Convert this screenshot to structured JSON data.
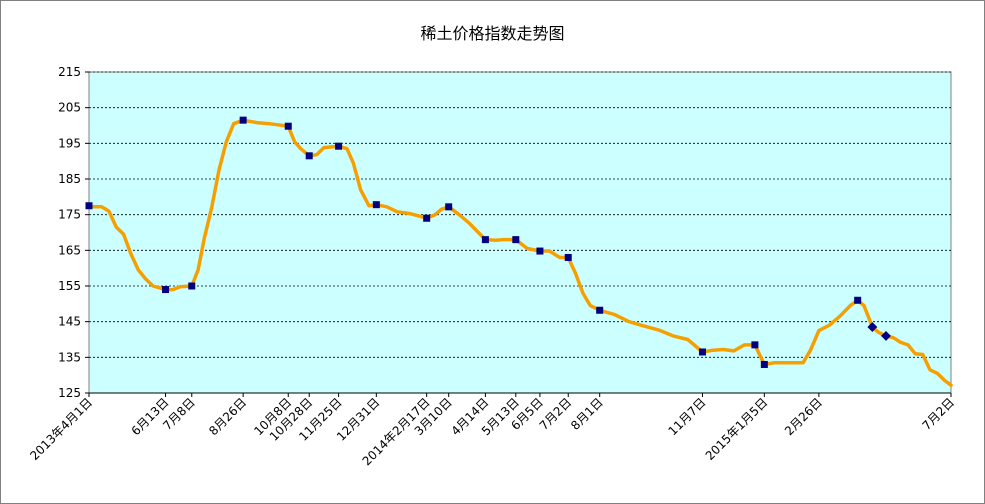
{
  "chart_data": {
    "type": "line",
    "title": "稀土价格指数走势图",
    "xlabel": "",
    "ylabel": "",
    "ylim": [
      125,
      215
    ],
    "yticks": [
      125,
      135,
      145,
      155,
      165,
      175,
      185,
      195,
      205,
      215
    ],
    "xlim": [
      "2013-04-01",
      "2015-07-02"
    ],
    "grid": true,
    "plot_background": "#ccffff",
    "line_color": "#f5a000",
    "marker_color": "#000080",
    "xtick_labels": [
      {
        "label": "2013年4月1日",
        "date": "2013-04-01"
      },
      {
        "label": "6月13日",
        "date": "2013-06-13"
      },
      {
        "label": "7月8日",
        "date": "2013-07-08"
      },
      {
        "label": "8月26日",
        "date": "2013-08-26"
      },
      {
        "label": "10月8日",
        "date": "2013-10-08"
      },
      {
        "label": "10月28日",
        "date": "2013-10-28"
      },
      {
        "label": "11月25日",
        "date": "2013-11-25"
      },
      {
        "label": "12月31日",
        "date": "2013-12-31"
      },
      {
        "label": "2014年2月17日",
        "date": "2014-02-17"
      },
      {
        "label": "3月10日",
        "date": "2014-03-10"
      },
      {
        "label": "4月14日",
        "date": "2014-04-14"
      },
      {
        "label": "5月13日",
        "date": "2014-05-13"
      },
      {
        "label": "6月5日",
        "date": "2014-06-05"
      },
      {
        "label": "7月2日",
        "date": "2014-07-02"
      },
      {
        "label": "8月1日",
        "date": "2014-08-01"
      },
      {
        "label": "11月7日",
        "date": "2014-11-07"
      },
      {
        "label": "2015年1月5日",
        "date": "2015-01-05"
      },
      {
        "label": "2月26日",
        "date": "2015-02-26"
      },
      {
        "label": "7月2日",
        "date": "2015-07-02"
      }
    ],
    "series": [
      {
        "line": [
          [
            "2013-04-01",
            177.5
          ],
          [
            "2013-04-06",
            177.2
          ],
          [
            "2013-04-13",
            177.2
          ],
          [
            "2013-04-20",
            176.0
          ],
          [
            "2013-04-27",
            171.5
          ],
          [
            "2013-05-04",
            169.5
          ],
          [
            "2013-05-11",
            164.0
          ],
          [
            "2013-05-18",
            159.5
          ],
          [
            "2013-05-25",
            157.0
          ],
          [
            "2013-06-01",
            155.0
          ],
          [
            "2013-06-13",
            154.0
          ],
          [
            "2013-06-20",
            154.0
          ],
          [
            "2013-06-27",
            154.8
          ],
          [
            "2013-07-08",
            155.0
          ],
          [
            "2013-07-14",
            159.5
          ],
          [
            "2013-07-20",
            168.5
          ],
          [
            "2013-07-27",
            177.0
          ],
          [
            "2013-08-03",
            187.5
          ],
          [
            "2013-08-10",
            195.5
          ],
          [
            "2013-08-17",
            200.5
          ],
          [
            "2013-08-26",
            201.5
          ],
          [
            "2013-09-08",
            200.8
          ],
          [
            "2013-09-20",
            200.5
          ],
          [
            "2013-10-08",
            199.8
          ],
          [
            "2013-10-14",
            195.5
          ],
          [
            "2013-10-20",
            193.5
          ],
          [
            "2013-10-28",
            191.5
          ],
          [
            "2013-11-04",
            191.8
          ],
          [
            "2013-11-11",
            193.8
          ],
          [
            "2013-11-25",
            194.2
          ],
          [
            "2013-12-03",
            193.5
          ],
          [
            "2013-12-09",
            189.5
          ],
          [
            "2013-12-16",
            182.0
          ],
          [
            "2013-12-24",
            177.5
          ],
          [
            "2013-12-31",
            177.8
          ],
          [
            "2014-01-10",
            177.2
          ],
          [
            "2014-01-20",
            175.8
          ],
          [
            "2014-02-01",
            175.3
          ],
          [
            "2014-02-17",
            174.0
          ],
          [
            "2014-02-25",
            175.0
          ],
          [
            "2014-03-03",
            176.5
          ],
          [
            "2014-03-10",
            177.2
          ],
          [
            "2014-03-20",
            175.0
          ],
          [
            "2014-03-30",
            172.5
          ],
          [
            "2014-04-14",
            168.0
          ],
          [
            "2014-04-24",
            167.8
          ],
          [
            "2014-05-01",
            168.0
          ],
          [
            "2014-05-13",
            168.0
          ],
          [
            "2014-05-24",
            165.5
          ],
          [
            "2014-06-05",
            164.8
          ],
          [
            "2014-06-14",
            164.8
          ],
          [
            "2014-06-24",
            163.0
          ],
          [
            "2014-07-02",
            163.0
          ],
          [
            "2014-07-09",
            158.5
          ],
          [
            "2014-07-16",
            153.0
          ],
          [
            "2014-07-23",
            149.5
          ],
          [
            "2014-08-01",
            148.2
          ],
          [
            "2014-08-15",
            147.0
          ],
          [
            "2014-08-29",
            145.0
          ],
          [
            "2014-09-12",
            143.8
          ],
          [
            "2014-09-26",
            142.7
          ],
          [
            "2014-10-10",
            141.0
          ],
          [
            "2014-10-24",
            140.0
          ],
          [
            "2014-11-07",
            136.5
          ],
          [
            "2014-11-17",
            137.0
          ],
          [
            "2014-11-27",
            137.2
          ],
          [
            "2014-12-07",
            136.8
          ],
          [
            "2014-12-17",
            138.5
          ],
          [
            "2014-12-27",
            138.5
          ],
          [
            "2015-01-05",
            133.0
          ],
          [
            "2015-01-15",
            133.5
          ],
          [
            "2015-01-25",
            133.5
          ],
          [
            "2015-02-05",
            133.5
          ],
          [
            "2015-02-11",
            133.5
          ],
          [
            "2015-02-18",
            137.0
          ],
          [
            "2015-02-26",
            142.5
          ],
          [
            "2015-03-08",
            144.0
          ],
          [
            "2015-03-18",
            146.5
          ],
          [
            "2015-03-28",
            149.5
          ],
          [
            "2015-04-04",
            151.0
          ],
          [
            "2015-04-10",
            149.5
          ],
          [
            "2015-04-18",
            143.5
          ],
          [
            "2015-04-24",
            142.0
          ],
          [
            "2015-05-01",
            141.0
          ],
          [
            "2015-05-08",
            140.5
          ],
          [
            "2015-05-15",
            139.2
          ],
          [
            "2015-05-22",
            138.5
          ],
          [
            "2015-05-29",
            136.0
          ],
          [
            "2015-06-05",
            135.8
          ],
          [
            "2015-06-12",
            131.5
          ],
          [
            "2015-06-19",
            130.5
          ],
          [
            "2015-06-26",
            128.5
          ],
          [
            "2015-07-02",
            127.2
          ]
        ],
        "markers": [
          [
            "2013-04-01",
            177.5
          ],
          [
            "2013-06-13",
            154.0
          ],
          [
            "2013-07-08",
            155.0
          ],
          [
            "2013-08-26",
            201.5
          ],
          [
            "2013-10-08",
            199.8
          ],
          [
            "2013-10-28",
            191.5
          ],
          [
            "2013-11-25",
            194.2
          ],
          [
            "2013-12-31",
            177.8
          ],
          [
            "2014-02-17",
            174.0
          ],
          [
            "2014-03-10",
            177.2
          ],
          [
            "2014-04-14",
            168.0
          ],
          [
            "2014-05-13",
            168.0
          ],
          [
            "2014-06-05",
            164.8
          ],
          [
            "2014-07-02",
            163.0
          ],
          [
            "2014-08-01",
            148.2
          ],
          [
            "2014-11-07",
            136.5
          ],
          [
            "2014-12-27",
            138.5
          ],
          [
            "2015-01-05",
            133.0
          ],
          [
            "2015-04-04",
            151.0
          ]
        ],
        "diamond_markers": [
          [
            "2015-04-18",
            143.5
          ],
          [
            "2015-05-01",
            141.0
          ]
        ]
      }
    ]
  }
}
